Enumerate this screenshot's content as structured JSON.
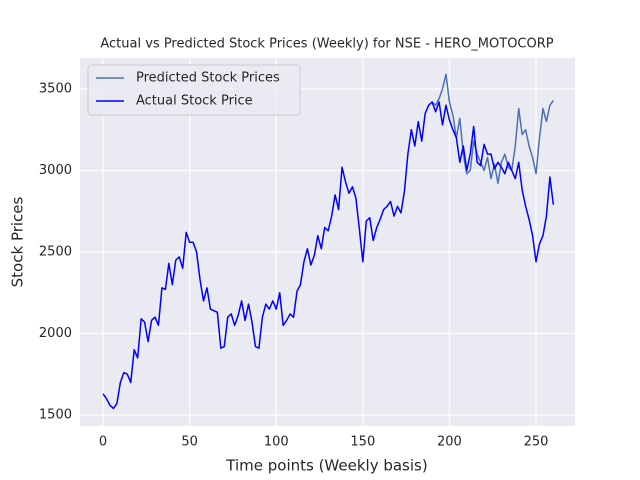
{
  "chart_data": {
    "type": "line",
    "title": "Actual vs Predicted Stock Prices (Weekly) for NSE - HERO_MOTOCORP",
    "xlabel": "Time points (Weekly basis)",
    "ylabel": "Stock Prices",
    "xlim": [
      -13.3,
      272.5
    ],
    "ylim": [
      1432.5,
      3690
    ],
    "xticks": [
      0,
      50,
      100,
      150,
      200,
      250
    ],
    "yticks": [
      1500,
      2000,
      2500,
      3000,
      3500
    ],
    "grid": true,
    "legend": "upper left",
    "series": [
      {
        "name": "Predicted Stock Prices",
        "color": "#4c72b0",
        "x": [
          190,
          192,
          194,
          196,
          198,
          200,
          202,
          204,
          206,
          208,
          210,
          212,
          214,
          216,
          218,
          220,
          222,
          224,
          226,
          228,
          230,
          232,
          234,
          236,
          238,
          240,
          242,
          244,
          246,
          248,
          250,
          252,
          254,
          256,
          258,
          260
        ],
        "values": [
          3420,
          3400,
          3440,
          3500,
          3590,
          3420,
          3340,
          3200,
          3320,
          3100,
          2980,
          3000,
          3180,
          3100,
          3050,
          3000,
          3080,
          2950,
          3040,
          2920,
          3050,
          3100,
          3020,
          3000,
          3150,
          3380,
          3220,
          3250,
          3150,
          3080,
          2980,
          3200,
          3380,
          3300,
          3400,
          3430
        ]
      },
      {
        "name": "Actual Stock Price",
        "color": "#0000ff",
        "x": [
          0,
          2,
          4,
          6,
          8,
          10,
          12,
          14,
          16,
          18,
          20,
          22,
          24,
          26,
          28,
          30,
          32,
          34,
          36,
          38,
          40,
          42,
          44,
          46,
          48,
          50,
          52,
          54,
          56,
          58,
          60,
          62,
          64,
          66,
          68,
          70,
          72,
          74,
          76,
          78,
          80,
          82,
          84,
          86,
          88,
          90,
          92,
          94,
          96,
          98,
          100,
          102,
          104,
          106,
          108,
          110,
          112,
          114,
          116,
          118,
          120,
          122,
          124,
          126,
          128,
          130,
          132,
          134,
          136,
          138,
          140,
          142,
          144,
          146,
          148,
          150,
          152,
          154,
          156,
          158,
          160,
          162,
          164,
          166,
          168,
          170,
          172,
          174,
          176,
          178,
          180,
          182,
          184,
          186,
          188,
          190,
          192,
          194,
          196,
          198,
          200,
          202,
          204,
          206,
          208,
          210,
          212,
          214,
          216,
          218,
          220,
          222,
          224,
          226,
          228,
          230,
          232,
          234,
          236,
          238,
          240,
          242,
          244,
          246,
          248,
          250,
          252,
          254,
          256,
          258,
          260
        ],
        "values": [
          1630,
          1600,
          1560,
          1540,
          1570,
          1700,
          1760,
          1750,
          1700,
          1900,
          1850,
          2090,
          2070,
          1950,
          2080,
          2100,
          2050,
          2280,
          2270,
          2430,
          2300,
          2450,
          2470,
          2400,
          2620,
          2560,
          2560,
          2500,
          2330,
          2200,
          2280,
          2150,
          2140,
          2130,
          1910,
          1920,
          2100,
          2120,
          2050,
          2110,
          2200,
          2080,
          2180,
          2070,
          1920,
          1910,
          2100,
          2180,
          2150,
          2200,
          2150,
          2250,
          2050,
          2080,
          2120,
          2100,
          2260,
          2300,
          2440,
          2520,
          2420,
          2480,
          2600,
          2520,
          2650,
          2630,
          2720,
          2850,
          2760,
          3020,
          2930,
          2860,
          2900,
          2830,
          2640,
          2440,
          2690,
          2710,
          2570,
          2650,
          2700,
          2760,
          2780,
          2810,
          2720,
          2780,
          2740,
          2870,
          3100,
          3250,
          3150,
          3300,
          3180,
          3350,
          3400,
          3420,
          3360,
          3420,
          3280,
          3400,
          3310,
          3250,
          3200,
          3050,
          3150,
          3000,
          3100,
          3270,
          3050,
          3030,
          3160,
          3100,
          3100,
          3010,
          3050,
          3020,
          2980,
          3050,
          3000,
          2950,
          3050,
          2880,
          2780,
          2700,
          2600,
          2440,
          2550,
          2600,
          2720,
          2960,
          2790
        ]
      }
    ]
  }
}
